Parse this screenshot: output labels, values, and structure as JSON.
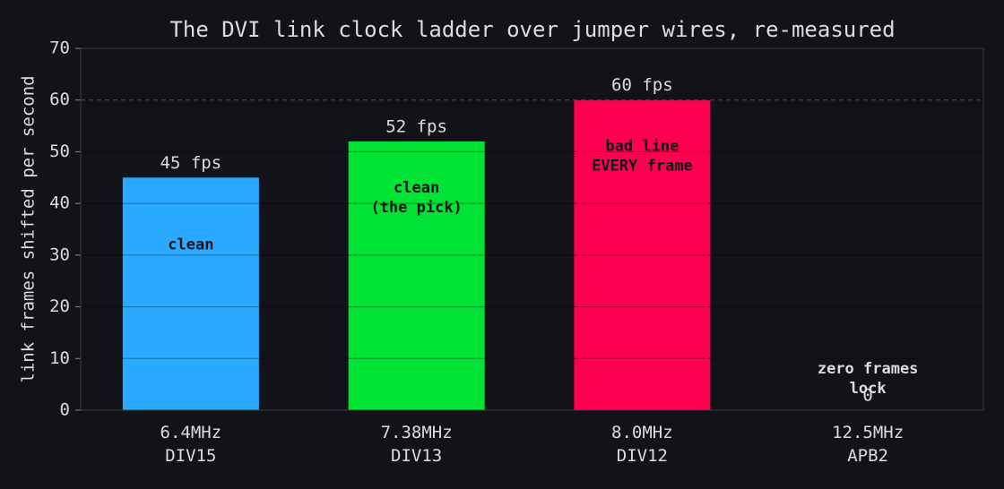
{
  "chart_data": {
    "type": "bar",
    "title": "The DVI link clock ladder over jumper wires, re-measured",
    "y_label": "link frames shifted per second",
    "categories": [
      "6.4MHz\nDIV15",
      "7.38MHz\nDIV13",
      "8.0MHz\nDIV12",
      "12.5MHz\nAPB2"
    ],
    "values": [
      45,
      52,
      60,
      0
    ],
    "value_labels": [
      "45 fps",
      "52 fps",
      "60 fps",
      "0"
    ],
    "colors": [
      "#29aaff",
      "#00e234",
      "#ff0050",
      "#888888"
    ],
    "annotations": [
      "clean",
      "clean\n(the pick)",
      "bad line\nEVERY frame",
      "zero frames\nlock"
    ],
    "reference_line": 60,
    "ylim": [
      0,
      70
    ],
    "yticks": [
      0,
      10,
      20,
      30,
      40,
      50,
      60,
      70
    ],
    "grid": true
  }
}
